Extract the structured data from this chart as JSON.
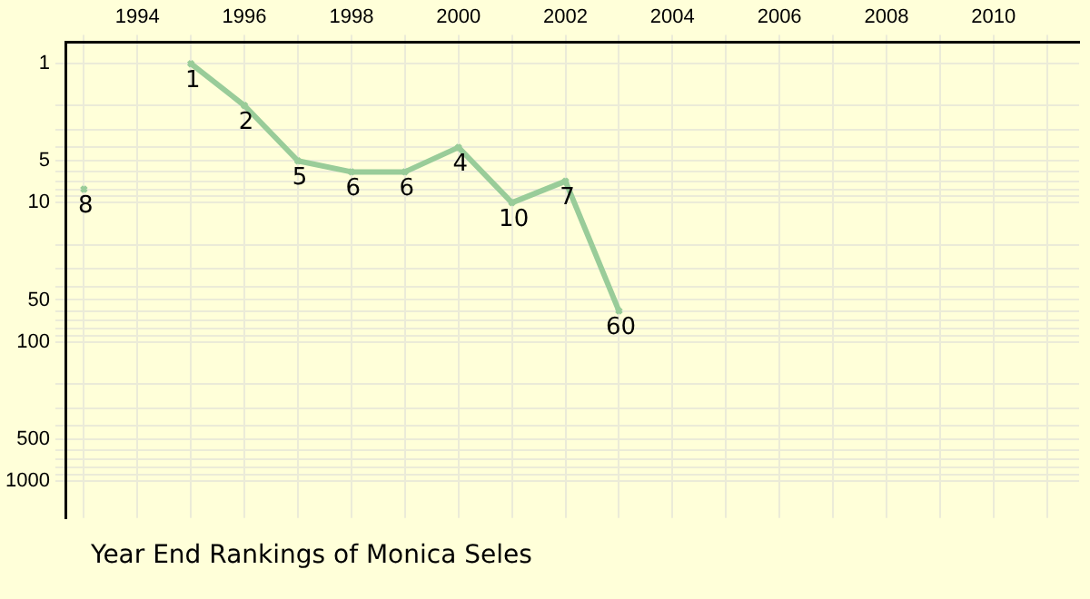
{
  "chart_data": {
    "type": "line",
    "title": "Year End Rankings of Monica Seles",
    "x": [
      1993,
      1994,
      1995,
      1996,
      1997,
      1998,
      1999,
      2000,
      2001,
      2002,
      2003
    ],
    "series": [
      {
        "color": "#99cc99",
        "values": [
          8,
          null,
          1,
          2,
          5,
          6,
          6,
          4,
          10,
          7,
          60
        ]
      }
    ],
    "xlim": [
      1992.67,
      2011.6
    ],
    "xticks": [
      {
        "value": 1993,
        "label": null
      },
      1994,
      {
        "value": 1995,
        "label": null
      },
      1996,
      {
        "value": 1997,
        "label": null
      },
      1998,
      {
        "value": 1999,
        "label": null
      },
      2000,
      {
        "value": 2001,
        "label": null
      },
      2002,
      {
        "value": 2003,
        "label": null
      },
      2004,
      {
        "value": 2005,
        "label": null
      },
      2006,
      {
        "value": 2007,
        "label": null
      },
      2008,
      {
        "value": 2009,
        "label": null
      },
      2010,
      {
        "value": 2011,
        "label": null
      }
    ],
    "ylim": [
      1850,
      0.74
    ],
    "yticks": [
      1,
      {
        "value": 2,
        "label": null
      },
      {
        "value": 3,
        "label": null
      },
      {
        "value": 4,
        "label": null
      },
      5,
      {
        "value": 6,
        "label": null
      },
      {
        "value": 7,
        "label": null
      },
      {
        "value": 8,
        "label": null
      },
      {
        "value": 9,
        "label": null
      },
      10,
      {
        "value": 20,
        "label": null
      },
      {
        "value": 30,
        "label": null
      },
      {
        "value": 40,
        "label": null
      },
      50,
      {
        "value": 60,
        "label": null
      },
      {
        "value": 70,
        "label": null
      },
      {
        "value": 80,
        "label": null
      },
      {
        "value": 90,
        "label": null
      },
      100,
      {
        "value": 200,
        "label": null
      },
      {
        "value": 300,
        "label": null
      },
      {
        "value": 400,
        "label": null
      },
      500,
      {
        "value": 600,
        "label": null
      },
      {
        "value": 700,
        "label": null
      },
      {
        "value": 800,
        "label": null
      },
      {
        "value": 900,
        "label": null
      },
      1000
    ],
    "log": "y",
    "grid": true,
    "legend": false,
    "marker": "cross",
    "line_style": "solid",
    "data_labels": true
  }
}
